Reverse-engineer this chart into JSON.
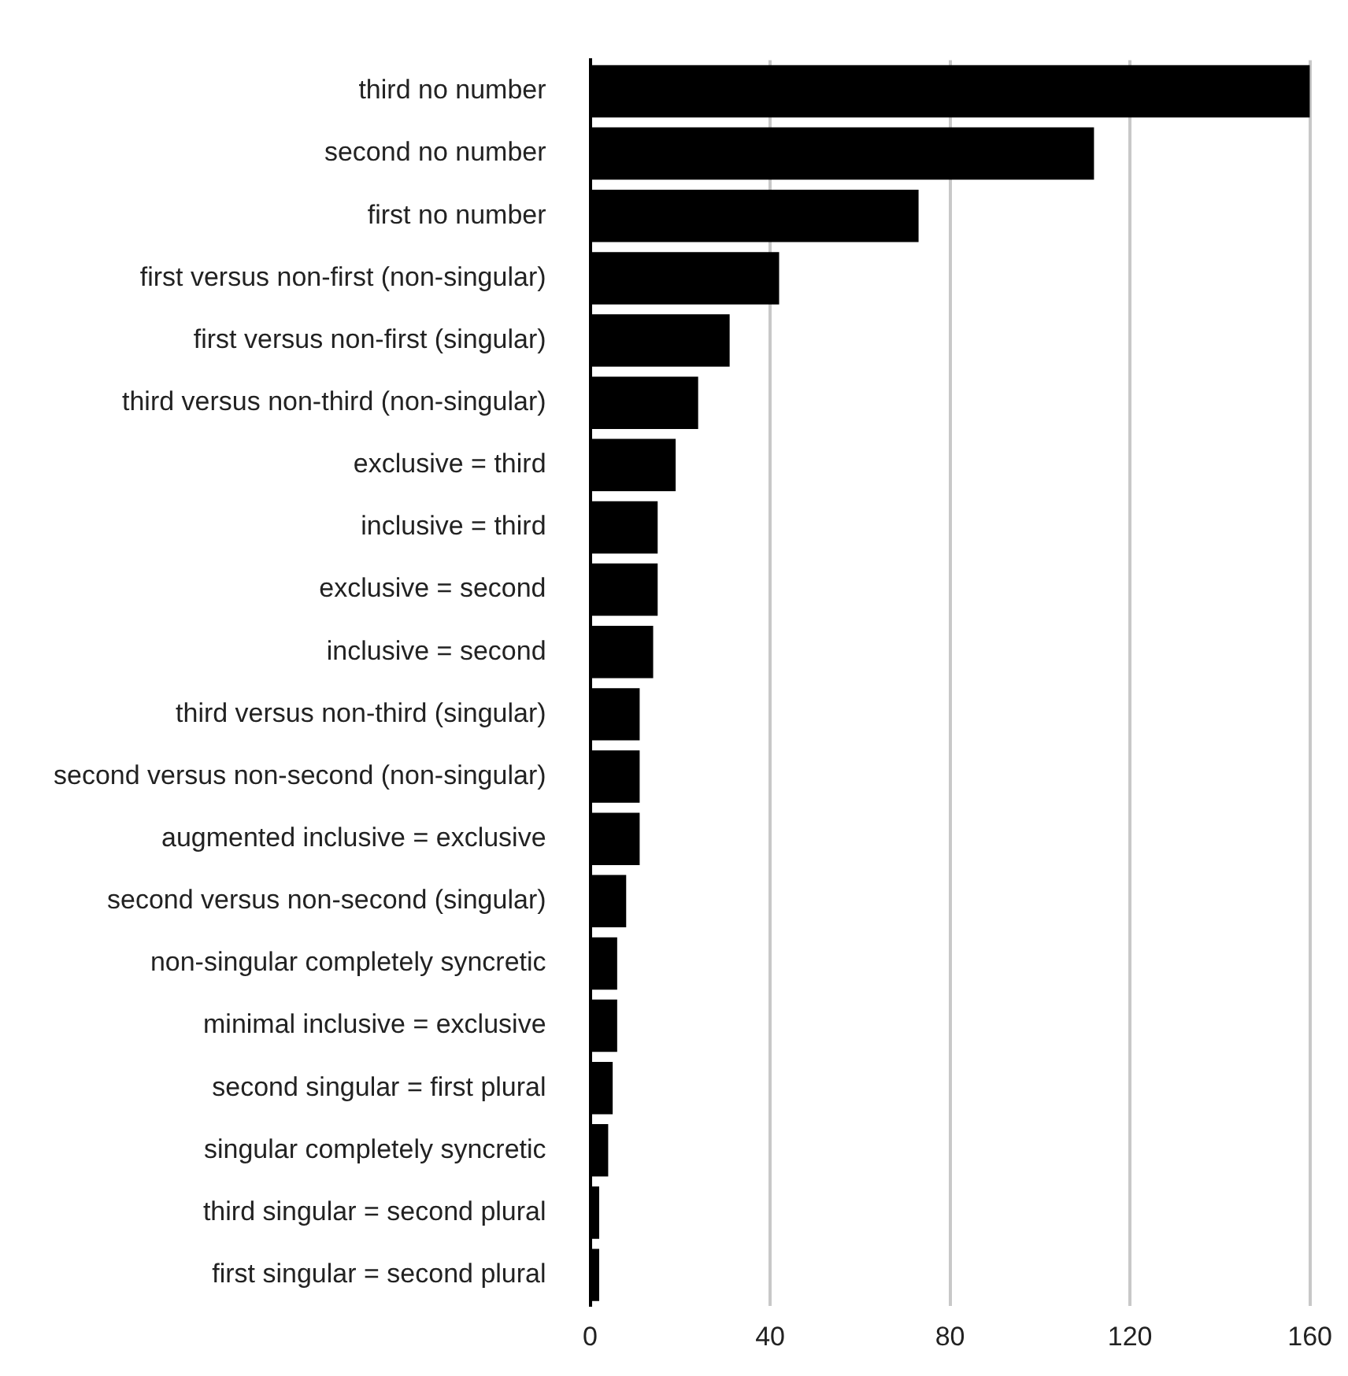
{
  "chart_data": {
    "type": "bar",
    "orientation": "horizontal",
    "categories": [
      "third no number",
      "second no number",
      "first no number",
      "first versus non-first (non-singular)",
      "first versus non-first (singular)",
      "third versus non-third (non-singular)",
      "exclusive = third",
      "inclusive = third",
      "exclusive = second",
      "inclusive = second",
      "third versus non-third (singular)",
      "second versus non-second (non-singular)",
      "augmented inclusive = exclusive",
      "second versus non-second (singular)",
      "non-singular completely syncretic",
      "minimal inclusive = exclusive",
      "second singular = first plural",
      "singular completely syncretic",
      "third singular = second plural",
      "first singular = second plural"
    ],
    "values": [
      160,
      112,
      73,
      42,
      31,
      24,
      19,
      15,
      15,
      14,
      11,
      11,
      11,
      8,
      6,
      6,
      5,
      4,
      2,
      2
    ],
    "color": "#000000",
    "xlim": [
      0,
      160
    ],
    "xticks": [
      0,
      40,
      80,
      120,
      160
    ],
    "grid": "x",
    "legend": false
  }
}
